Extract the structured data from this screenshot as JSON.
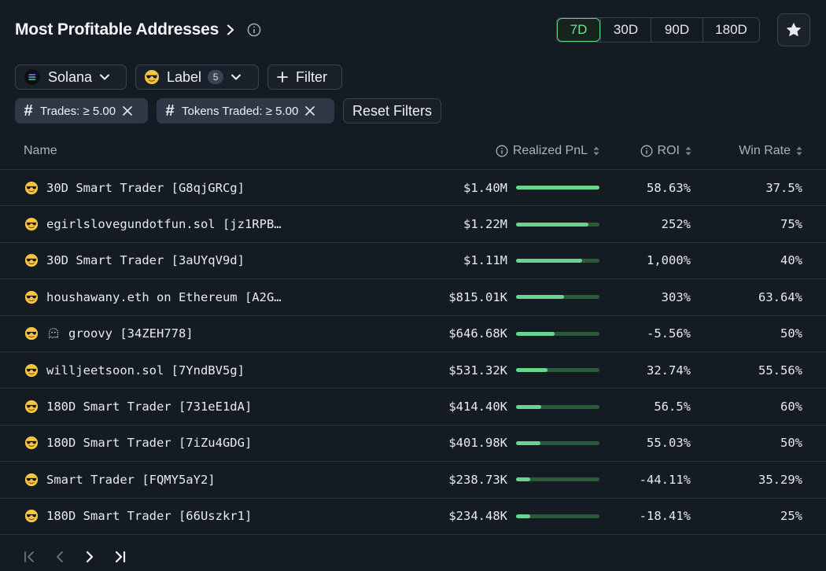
{
  "header": {
    "title": "Most Profitable Addresses"
  },
  "periods": [
    {
      "label": "7D",
      "active": true
    },
    {
      "label": "30D",
      "active": false
    },
    {
      "label": "90D",
      "active": false
    },
    {
      "label": "180D",
      "active": false
    }
  ],
  "filters": {
    "chain": "Solana",
    "label": "Label",
    "label_count": "5",
    "add_filter": "Filter",
    "active": [
      {
        "text": "Trades: ≥ 5.00"
      },
      {
        "text": "Tokens Traded: ≥ 5.00"
      }
    ],
    "reset": "Reset Filters"
  },
  "columns": {
    "name": "Name",
    "pnl": "Realized PnL",
    "roi": "ROI",
    "win": "Win Rate"
  },
  "rows": [
    {
      "name": "30D Smart Trader [G8qjGRCg]",
      "pnl": "$1.40M",
      "bar": 1.0,
      "roi": "58.63%",
      "win": "37.5%",
      "extra_icon": false
    },
    {
      "name": "egirlslovegundotfun.sol [jz1RPB…",
      "pnl": "$1.22M",
      "bar": 0.87,
      "roi": "252%",
      "win": "75%",
      "extra_icon": false
    },
    {
      "name": "30D Smart Trader [3aUYqV9d]",
      "pnl": "$1.11M",
      "bar": 0.79,
      "roi": "1,000%",
      "win": "40%",
      "extra_icon": false
    },
    {
      "name": "houshawany.eth on Ethereum [A2G…",
      "pnl": "$815.01K",
      "bar": 0.58,
      "roi": "303%",
      "win": "63.64%",
      "extra_icon": false
    },
    {
      "name": "groovy [34ZEH778]",
      "pnl": "$646.68K",
      "bar": 0.46,
      "roi": "-5.56%",
      "win": "50%",
      "extra_icon": true
    },
    {
      "name": "willjeetsoon.sol [7YndBV5g]",
      "pnl": "$531.32K",
      "bar": 0.38,
      "roi": "32.74%",
      "win": "55.56%",
      "extra_icon": false
    },
    {
      "name": "180D Smart Trader [731eE1dA]",
      "pnl": "$414.40K",
      "bar": 0.3,
      "roi": "56.5%",
      "win": "60%",
      "extra_icon": false
    },
    {
      "name": "180D Smart Trader [7iZu4GDG]",
      "pnl": "$401.98K",
      "bar": 0.29,
      "roi": "55.03%",
      "win": "50%",
      "extra_icon": false
    },
    {
      "name": "Smart Trader [FQMY5aY2]",
      "pnl": "$238.73K",
      "bar": 0.17,
      "roi": "-44.11%",
      "win": "35.29%",
      "extra_icon": false
    },
    {
      "name": "180D Smart Trader [66Uszkr1]",
      "pnl": "$234.48K",
      "bar": 0.17,
      "roi": "-18.41%",
      "win": "25%",
      "extra_icon": false
    }
  ],
  "icons": {
    "row": "sunglasses-emoji-icon",
    "extra": "ghost-icon",
    "chain": "solana-logo-icon"
  },
  "colors": {
    "accent": "#6fe09a",
    "bar_fill": "#6ad38e",
    "bar_track": "#2b5a3b",
    "background": "#151b23"
  }
}
